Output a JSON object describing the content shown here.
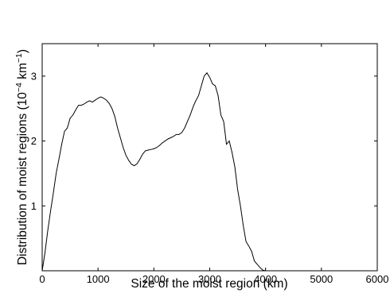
{
  "chart_data": {
    "type": "line",
    "title": "",
    "xlabel": "Size of the moist region (km)",
    "ylabel_main": "Distribution of moist regions (10",
    "ylabel_exp": "−4",
    "ylabel_unit": " km",
    "ylabel_unit_exp": "−1",
    "ylabel_close": ")",
    "xlim": [
      0,
      6000
    ],
    "ylim": [
      0,
      3.5
    ],
    "xticks": [
      0,
      1000,
      2000,
      3000,
      4000,
      5000,
      6000
    ],
    "xtick_labels": [
      "0",
      "1000",
      "2000",
      "3000",
      "4000",
      "5000",
      "6000"
    ],
    "yticks": [
      1,
      2,
      3
    ],
    "ytick_labels": [
      "1",
      "2",
      "3"
    ],
    "grid": false,
    "series": [
      {
        "x": [
          0,
          50,
          100,
          150,
          200,
          250,
          300,
          350,
          400,
          450,
          500,
          550,
          600,
          650,
          700,
          750,
          800,
          850,
          900,
          950,
          1000,
          1050,
          1100,
          1150,
          1200,
          1250,
          1300,
          1350,
          1400,
          1450,
          1500,
          1550,
          1600,
          1650,
          1700,
          1750,
          1800,
          1850,
          1900,
          1950,
          2000,
          2050,
          2100,
          2150,
          2200,
          2250,
          2300,
          2350,
          2400,
          2450,
          2500,
          2550,
          2600,
          2650,
          2700,
          2750,
          2800,
          2850,
          2900,
          2950,
          3000,
          3050,
          3100,
          3150,
          3200,
          3250,
          3300,
          3350,
          3400,
          3450,
          3500,
          3550,
          3600,
          3650,
          3700,
          3750,
          3800,
          3850,
          3900,
          3950,
          4000,
          4050,
          4100,
          4150
        ],
        "y": [
          0.0,
          0.28,
          0.62,
          0.92,
          1.2,
          1.5,
          1.72,
          1.95,
          2.15,
          2.2,
          2.35,
          2.4,
          2.48,
          2.55,
          2.55,
          2.57,
          2.6,
          2.62,
          2.6,
          2.63,
          2.66,
          2.68,
          2.66,
          2.63,
          2.58,
          2.5,
          2.38,
          2.2,
          2.05,
          1.9,
          1.78,
          1.7,
          1.64,
          1.62,
          1.65,
          1.72,
          1.8,
          1.85,
          1.86,
          1.87,
          1.88,
          1.9,
          1.93,
          1.97,
          2.0,
          2.03,
          2.05,
          2.07,
          2.1,
          2.1,
          2.13,
          2.2,
          2.3,
          2.4,
          2.52,
          2.62,
          2.7,
          2.85,
          3.0,
          3.05,
          2.98,
          2.88,
          2.85,
          2.7,
          2.4,
          2.3,
          1.95,
          2.0,
          1.82,
          1.6,
          1.25,
          1.0,
          0.7,
          0.45,
          0.38,
          0.3,
          0.15,
          0.1,
          0.05,
          0.01,
          0.0,
          0.0,
          0.0,
          0.0
        ]
      }
    ]
  }
}
